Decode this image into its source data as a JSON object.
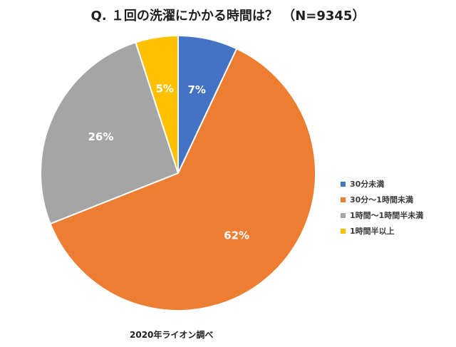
{
  "chart_data": {
    "type": "pie",
    "title": "Q. １回の洗濯にかかる時間は？ （N=9345）",
    "categories": [
      "30分未満",
      "30分～1時間未満",
      "1時間～1時間半未満",
      "1時間半以上"
    ],
    "values": [
      7,
      62,
      26,
      5
    ],
    "data_labels": [
      "7%",
      "62%",
      "26%",
      "5%"
    ],
    "colors": [
      "#4472C4",
      "#ED7D31",
      "#A5A5A5",
      "#FFC000"
    ],
    "legend_position": "right",
    "start_angle": "12 o'clock, clockwise",
    "source_note": "2020年ライオン調べ"
  }
}
